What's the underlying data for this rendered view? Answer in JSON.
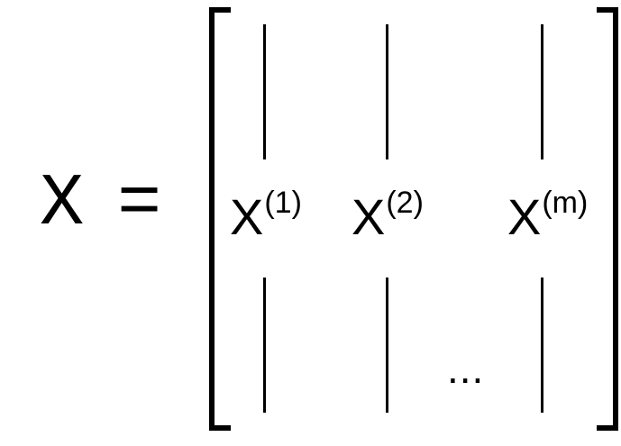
{
  "equation": {
    "lhs": "X",
    "equals": "="
  },
  "matrix": {
    "columns": [
      {
        "base": "X",
        "superscript": "(1)"
      },
      {
        "base": "X",
        "superscript": "(2)"
      },
      {
        "base": "X",
        "superscript": "(m)"
      }
    ],
    "ellipsis": "..."
  }
}
